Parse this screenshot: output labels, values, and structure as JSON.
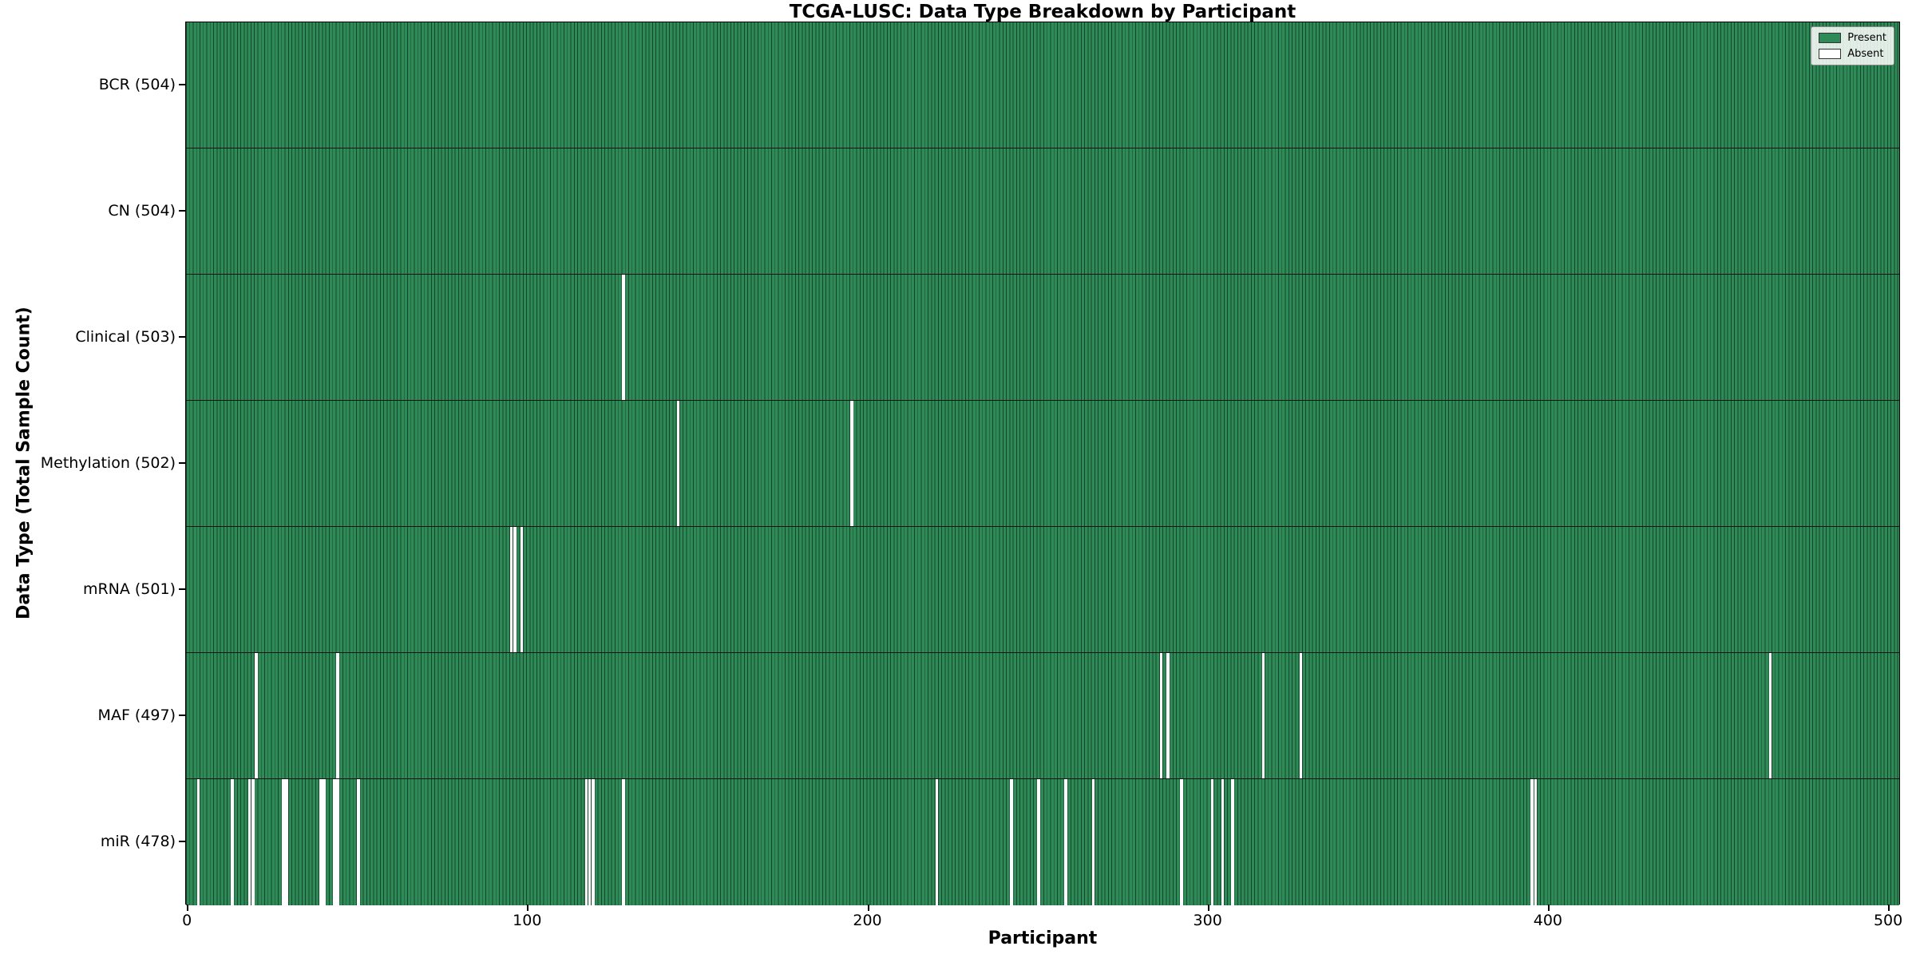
{
  "figure": {
    "title": "TCGA-LUSC: Data Type Breakdown by Participant",
    "xlabel": "Participant",
    "ylabel": "Data Type (Total Sample Count)"
  },
  "legend": {
    "items": [
      {
        "label": "Present",
        "color": "#2e8b57",
        "border": "#333333"
      },
      {
        "label": "Absent",
        "color": "#ffffff",
        "border": "#333333"
      }
    ]
  },
  "chart_data": {
    "type": "heatmap",
    "title": "TCGA-LUSC: Data Type Breakdown by Participant",
    "xlabel": "Participant",
    "ylabel": "Data Type (Total Sample Count)",
    "x_ticks": [
      0,
      100,
      200,
      300,
      400,
      500
    ],
    "xlim": [
      0,
      504
    ],
    "total_participants": 504,
    "present_color": "#2e8b57",
    "absent_color": "#ffffff",
    "bar_edge_color": "rgba(0,0,0,0.5)",
    "legend_position": "upper right",
    "grid": false,
    "rows": [
      {
        "data_type": "BCR",
        "label": "BCR (504)",
        "present_count": 504,
        "absent_participants": []
      },
      {
        "data_type": "CN",
        "label": "CN (504)",
        "present_count": 504,
        "absent_participants": []
      },
      {
        "data_type": "Clinical",
        "label": "Clinical (503)",
        "present_count": 503,
        "absent_participants": [
          128
        ]
      },
      {
        "data_type": "Methylation",
        "label": "Methylation (502)",
        "present_count": 502,
        "absent_participants": [
          144,
          195
        ]
      },
      {
        "data_type": "mRNA",
        "label": "mRNA (501)",
        "present_count": 501,
        "absent_participants": [
          95,
          96,
          98
        ]
      },
      {
        "data_type": "MAF",
        "label": "MAF (497)",
        "present_count": 497,
        "absent_participants": [
          20,
          44,
          286,
          288,
          316,
          327,
          465
        ]
      },
      {
        "data_type": "miR",
        "label": "miR (478)",
        "present_count": 478,
        "absent_participants": [
          3,
          13,
          18,
          19,
          28,
          29,
          39,
          40,
          43,
          44,
          50,
          117,
          118,
          119,
          128,
          220,
          242,
          250,
          258,
          266,
          292,
          301,
          304,
          307,
          395,
          396
        ]
      }
    ]
  }
}
